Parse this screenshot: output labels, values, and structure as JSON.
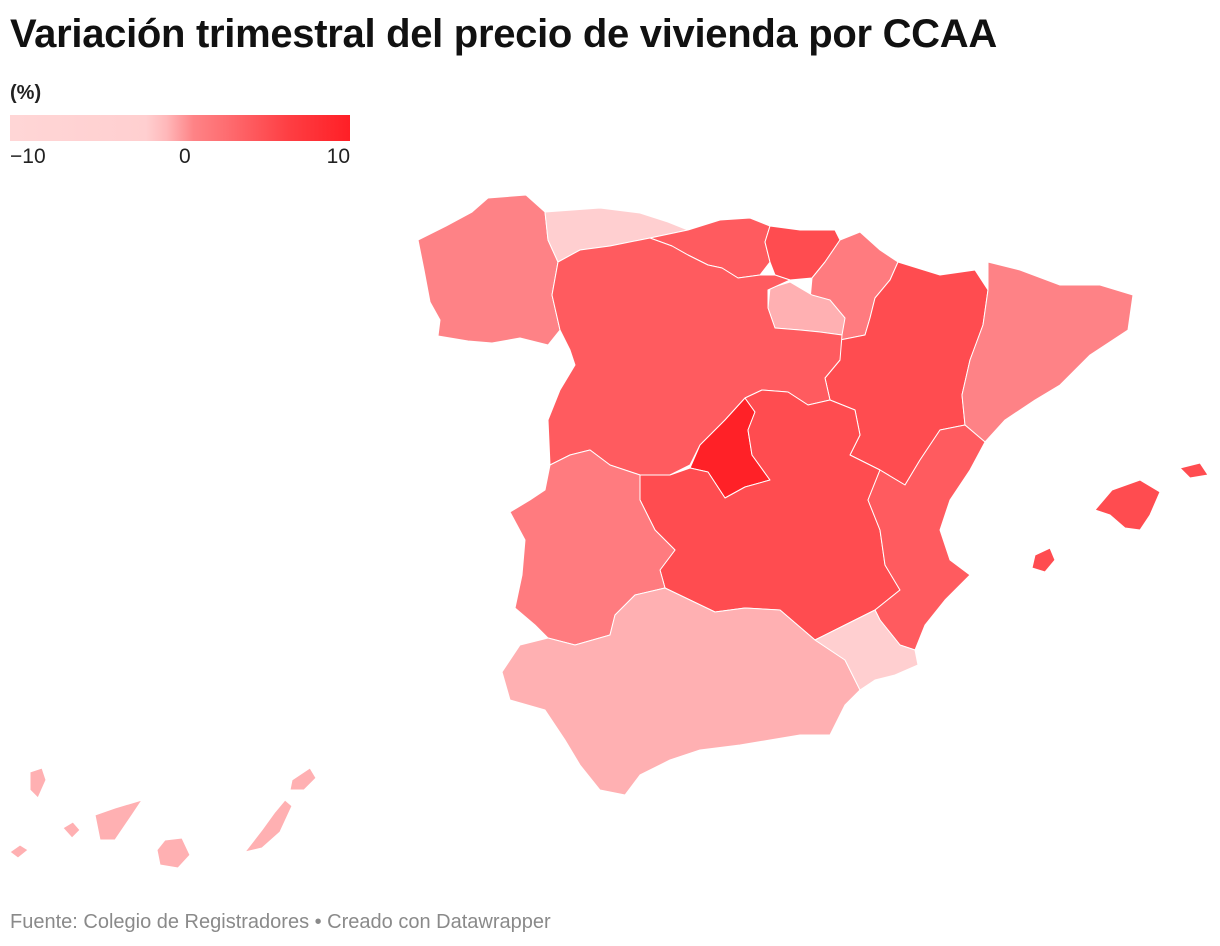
{
  "title": "Variación trimestral del precio de vivienda por CCAA",
  "legend": {
    "unit": "(%)",
    "min_label": "−10",
    "mid_label": "0",
    "max_label": "10"
  },
  "colors": {
    "very_low": "#ffcfd0",
    "low": "#ffb0b2",
    "mid_low": "#fe8286",
    "mid": "#ff7b7f",
    "mid_high": "#ff5b5f",
    "high": "#ff4c50",
    "very_high": "#ff2127"
  },
  "regions": [
    {
      "name": "Galicia",
      "level": "mid_low"
    },
    {
      "name": "Asturias",
      "level": "very_low"
    },
    {
      "name": "Cantabria",
      "level": "mid_high"
    },
    {
      "name": "País Vasco",
      "level": "high"
    },
    {
      "name": "Navarra",
      "level": "mid"
    },
    {
      "name": "La Rioja",
      "level": "low"
    },
    {
      "name": "Aragón",
      "level": "high"
    },
    {
      "name": "Cataluña",
      "level": "mid_low"
    },
    {
      "name": "Castilla y León",
      "level": "mid_high"
    },
    {
      "name": "Madrid",
      "level": "very_high"
    },
    {
      "name": "Castilla-La Mancha",
      "level": "high"
    },
    {
      "name": "Comunidad Valenciana",
      "level": "mid_high"
    },
    {
      "name": "Extremadura",
      "level": "mid"
    },
    {
      "name": "Andalucía",
      "level": "low"
    },
    {
      "name": "Murcia",
      "level": "very_low"
    },
    {
      "name": "Islas Baleares",
      "level": "high"
    },
    {
      "name": "Canarias",
      "level": "low"
    }
  ],
  "source": "Fuente: Colegio de Registradores • Creado con Datawrapper"
}
